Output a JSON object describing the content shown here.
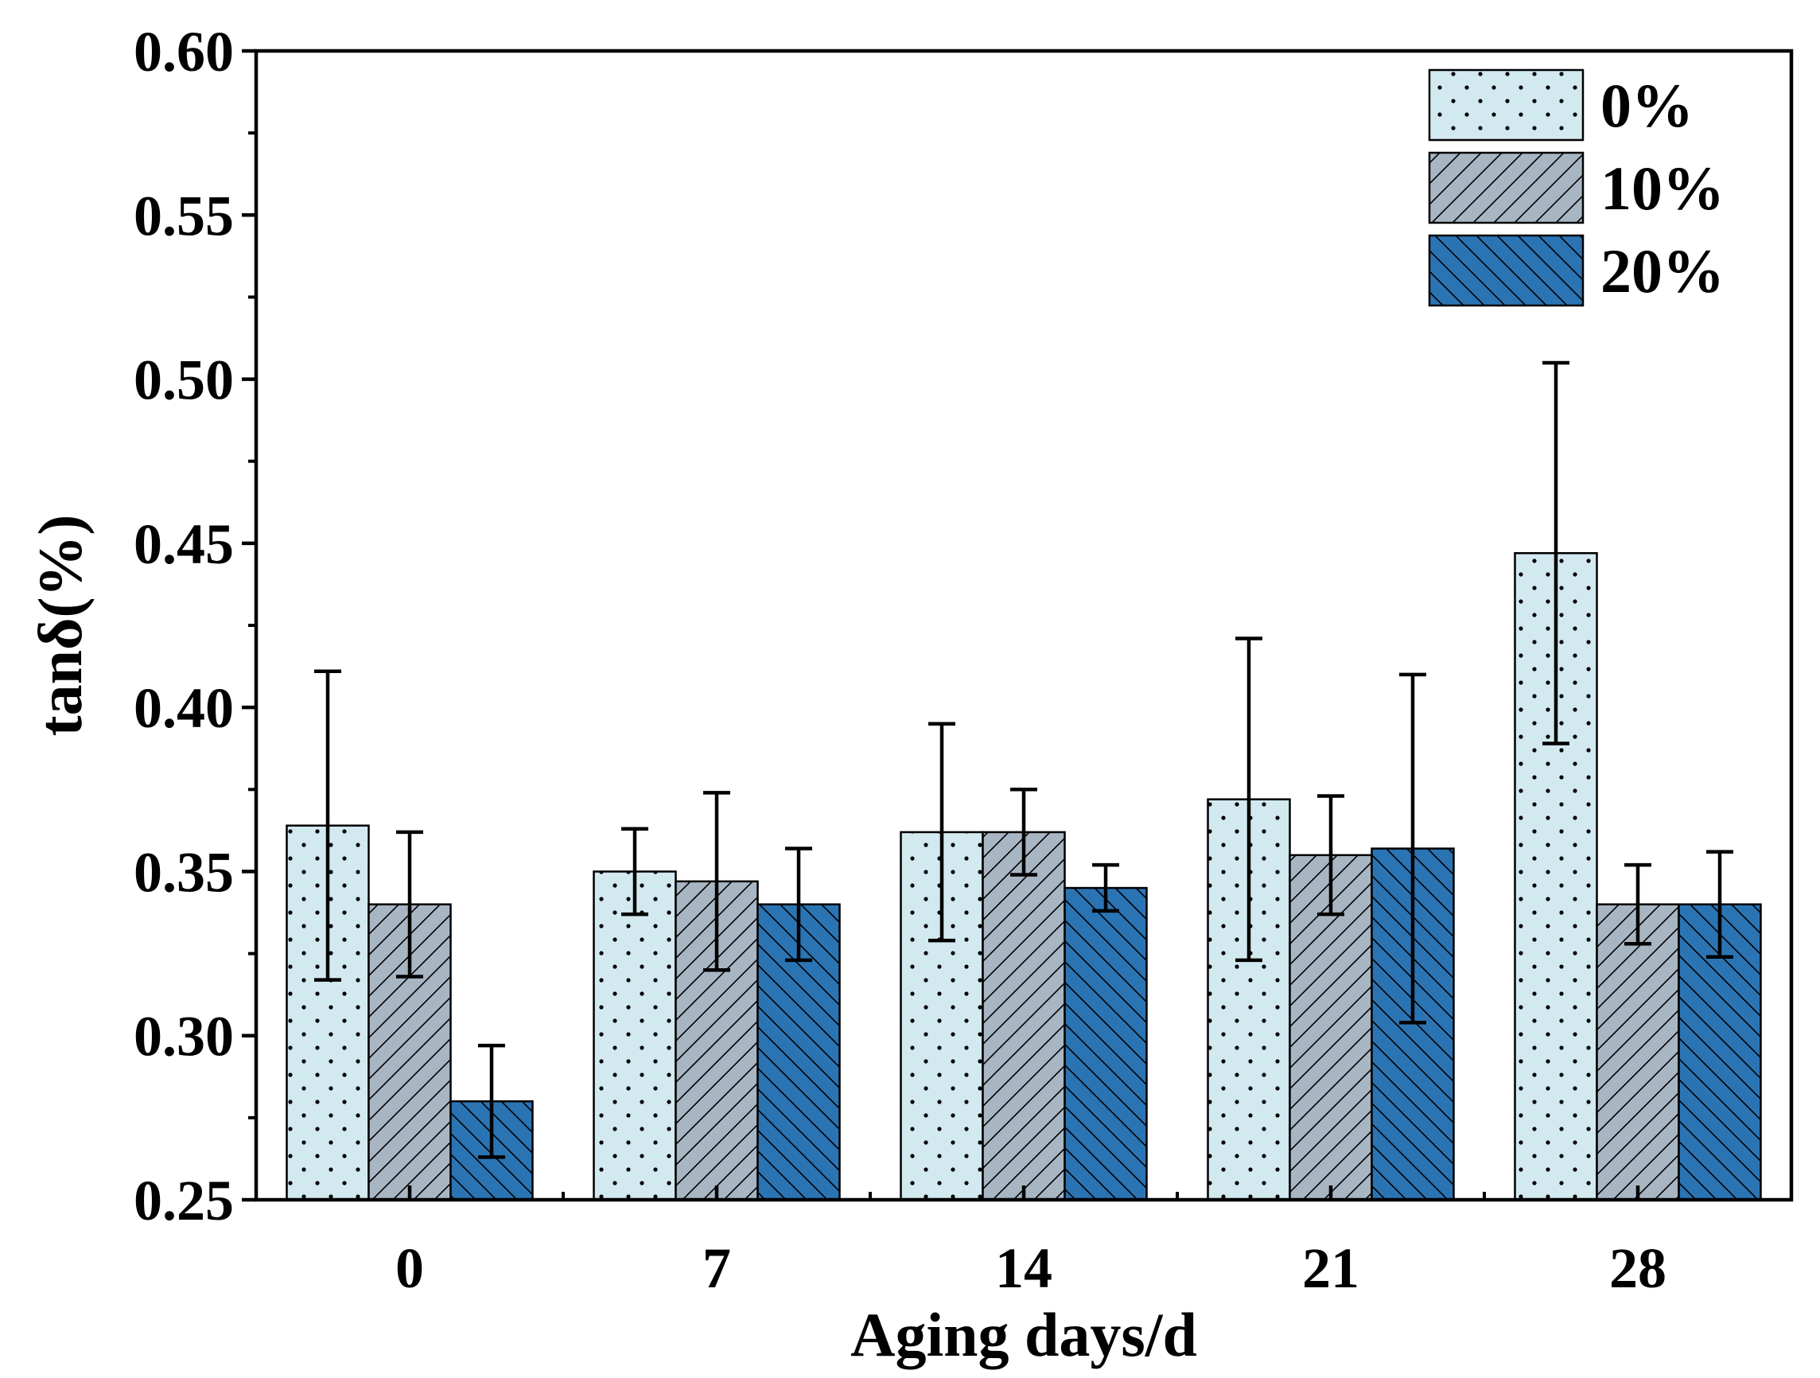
{
  "chart_data": {
    "type": "bar",
    "title": "",
    "xlabel": "Aging days/d",
    "ylabel": "tanδ(%)",
    "categories": [
      "0",
      "7",
      "14",
      "21",
      "28"
    ],
    "ylim": [
      0.25,
      0.6
    ],
    "yticks": [
      "0.25",
      "0.30",
      "0.35",
      "0.40",
      "0.45",
      "0.50",
      "0.55",
      "0.60"
    ],
    "grid": false,
    "legend_position": "top-right",
    "series": [
      {
        "name": "0%",
        "color": "#d3e9f0",
        "pattern": "dots",
        "values": [
          0.364,
          0.35,
          0.362,
          0.372,
          0.447
        ],
        "errors": [
          0.047,
          0.013,
          0.033,
          0.049,
          0.058
        ]
      },
      {
        "name": "10%",
        "color": "#a8b6c3",
        "pattern": "forward-hatch",
        "values": [
          0.34,
          0.347,
          0.362,
          0.355,
          0.34
        ],
        "errors": [
          0.022,
          0.027,
          0.013,
          0.018,
          0.012
        ]
      },
      {
        "name": "20%",
        "color": "#2b74b4",
        "pattern": "back-hatch",
        "values": [
          0.28,
          0.34,
          0.345,
          0.357,
          0.34
        ],
        "errors": [
          0.017,
          0.017,
          0.007,
          0.053,
          0.016
        ]
      }
    ]
  }
}
